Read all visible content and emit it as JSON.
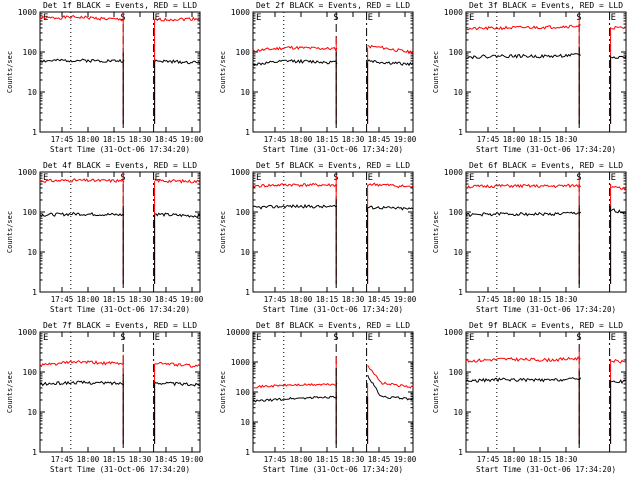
{
  "chart_data": [
    {
      "type": "line",
      "title": "Det 1f BLACK = Events, RED = LLD",
      "xlabel": "Start Time (31-Oct-06 17:34:20)",
      "ylabel": "Counts/sec",
      "x_ticks": [
        "17:45",
        "18:00",
        "18:15",
        "18:30",
        "18:45",
        "19:00"
      ],
      "y_ticks": [
        "1",
        "10",
        "100",
        "1000"
      ],
      "ylim": [
        1,
        1000
      ],
      "yscale": "log",
      "markers": [
        "E",
        "S",
        "E"
      ],
      "series": [
        {
          "color": "#ff0000",
          "values": [
            700,
            750,
            640,
            640,
            650,
            680
          ]
        },
        {
          "color": "#000000",
          "values": [
            60,
            62,
            60,
            60,
            58,
            55
          ]
        }
      ]
    },
    {
      "type": "line",
      "title": "Det 2f BLACK = Events, RED = LLD",
      "xlabel": "Start Time (31-Oct-06 17:34:20)",
      "ylabel": "Counts/sec",
      "x_ticks": [
        "17:45",
        "18:00",
        "18:15",
        "18:30",
        "18:45",
        "19:00"
      ],
      "y_ticks": [
        "1",
        "10",
        "100",
        "1000"
      ],
      "ylim": [
        1,
        1000
      ],
      "yscale": "log",
      "markers": [
        "E",
        "S",
        "E"
      ],
      "series": [
        {
          "color": "#ff0000",
          "values": [
            110,
            130,
            120,
            140,
            130,
            100
          ]
        },
        {
          "color": "#000000",
          "values": [
            50,
            60,
            55,
            62,
            55,
            50
          ]
        }
      ]
    },
    {
      "type": "line",
      "title": "Det 3f BLACK = Events, RED = LLD",
      "xlabel": "Start Time (31-Oct-06 17:34:20)",
      "ylabel": "Counts/sec",
      "x_ticks": [
        "17:45",
        "18:00",
        "18:15",
        "18:30"
      ],
      "y_ticks": [
        "1",
        "10",
        "100",
        "1000"
      ],
      "ylim": [
        1,
        1000
      ],
      "yscale": "log",
      "markers": [
        "E",
        "S",
        "E"
      ],
      "series": [
        {
          "color": "#ff0000",
          "values": [
            380,
            400,
            420,
            450,
            420,
            400
          ]
        },
        {
          "color": "#000000",
          "values": [
            75,
            80,
            78,
            85,
            80,
            75
          ]
        }
      ]
    },
    {
      "type": "line",
      "title": "Det 4f BLACK = Events, RED = LLD",
      "xlabel": "Start Time (31-Oct-06 17:34:20)",
      "ylabel": "Counts/sec",
      "x_ticks": [
        "17:45",
        "18:00",
        "18:15",
        "18:30",
        "18:45",
        "19:00"
      ],
      "y_ticks": [
        "1",
        "10",
        "100",
        "1000"
      ],
      "ylim": [
        1,
        1000
      ],
      "yscale": "log",
      "markers": [
        "E",
        "S",
        "E"
      ],
      "series": [
        {
          "color": "#ff0000",
          "values": [
            600,
            620,
            600,
            620,
            600,
            580
          ]
        },
        {
          "color": "#000000",
          "values": [
            85,
            90,
            85,
            90,
            85,
            80
          ]
        }
      ]
    },
    {
      "type": "line",
      "title": "Det 5f BLACK = Events, RED = LLD",
      "xlabel": "Start Time (31-Oct-06 17:34:20)",
      "ylabel": "Counts/sec",
      "x_ticks": [
        "17:45",
        "18:00",
        "18:15",
        "18:30",
        "18:45",
        "19:00"
      ],
      "y_ticks": [
        "1",
        "10",
        "100",
        "1000"
      ],
      "ylim": [
        1,
        1000
      ],
      "yscale": "log",
      "markers": [
        "E",
        "S",
        "E"
      ],
      "series": [
        {
          "color": "#ff0000",
          "values": [
            450,
            480,
            470,
            500,
            480,
            430
          ]
        },
        {
          "color": "#000000",
          "values": [
            130,
            140,
            135,
            130,
            130,
            120
          ]
        }
      ]
    },
    {
      "type": "line",
      "title": "Det 6f BLACK = Events, RED = LLD",
      "xlabel": "Start Time (31-Oct-06 17:34:20)",
      "ylabel": "Counts/sec",
      "x_ticks": [
        "17:45",
        "18:00",
        "18:15",
        "18:30"
      ],
      "y_ticks": [
        "1",
        "10",
        "100",
        "1000"
      ],
      "ylim": [
        1,
        1000
      ],
      "yscale": "log",
      "markers": [
        "E",
        "S",
        "E"
      ],
      "series": [
        {
          "color": "#ff0000",
          "values": [
            430,
            450,
            440,
            460,
            500,
            380
          ]
        },
        {
          "color": "#000000",
          "values": [
            85,
            90,
            88,
            95,
            140,
            100
          ]
        }
      ]
    },
    {
      "type": "line",
      "title": "Det 7f BLACK = Events, RED = LLD",
      "xlabel": "Start Time (31-Oct-06 17:34:20)",
      "ylabel": "Counts/sec",
      "x_ticks": [
        "17:45",
        "18:00",
        "18:15",
        "18:30",
        "18:45",
        "19:00"
      ],
      "y_ticks": [
        "1",
        "10",
        "100",
        "1000"
      ],
      "ylim": [
        1,
        1000
      ],
      "yscale": "log",
      "markers": [
        "E",
        "S",
        "E"
      ],
      "series": [
        {
          "color": "#ff0000",
          "values": [
            150,
            180,
            160,
            170,
            160,
            140
          ]
        },
        {
          "color": "#000000",
          "values": [
            50,
            55,
            52,
            55,
            52,
            48
          ]
        }
      ]
    },
    {
      "type": "line",
      "title": "Det 8f BLACK = Events, RED = LLD",
      "xlabel": "Start Time (31-Oct-06 17:34:20)",
      "ylabel": "Counts/sec",
      "x_ticks": [
        "17:45",
        "18:00",
        "18:15",
        "18:30",
        "18:45",
        "19:00"
      ],
      "y_ticks": [
        "1",
        "10",
        "100",
        "1000",
        "10000"
      ],
      "ylim": [
        1,
        10000
      ],
      "yscale": "log",
      "markers": [
        "E",
        "S",
        "E"
      ],
      "series": [
        {
          "color": "#ff0000",
          "values": [
            150,
            170,
            180,
            900,
            200,
            150
          ]
        },
        {
          "color": "#000000",
          "values": [
            50,
            60,
            70,
            400,
            70,
            60
          ]
        }
      ]
    },
    {
      "type": "line",
      "title": "Det 9f BLACK = Events, RED = LLD",
      "xlabel": "Start Time (31-Oct-06 17:34:20)",
      "ylabel": "Counts/sec",
      "x_ticks": [
        "17:45",
        "18:00",
        "18:15",
        "18:30"
      ],
      "y_ticks": [
        "1",
        "10",
        "100",
        "1000"
      ],
      "ylim": [
        1,
        1000
      ],
      "yscale": "log",
      "markers": [
        "E",
        "S",
        "E"
      ],
      "series": [
        {
          "color": "#ff0000",
          "values": [
            190,
            210,
            200,
            220,
            210,
            180
          ]
        },
        {
          "color": "#000000",
          "values": [
            60,
            65,
            62,
            68,
            62,
            58
          ]
        }
      ]
    }
  ]
}
